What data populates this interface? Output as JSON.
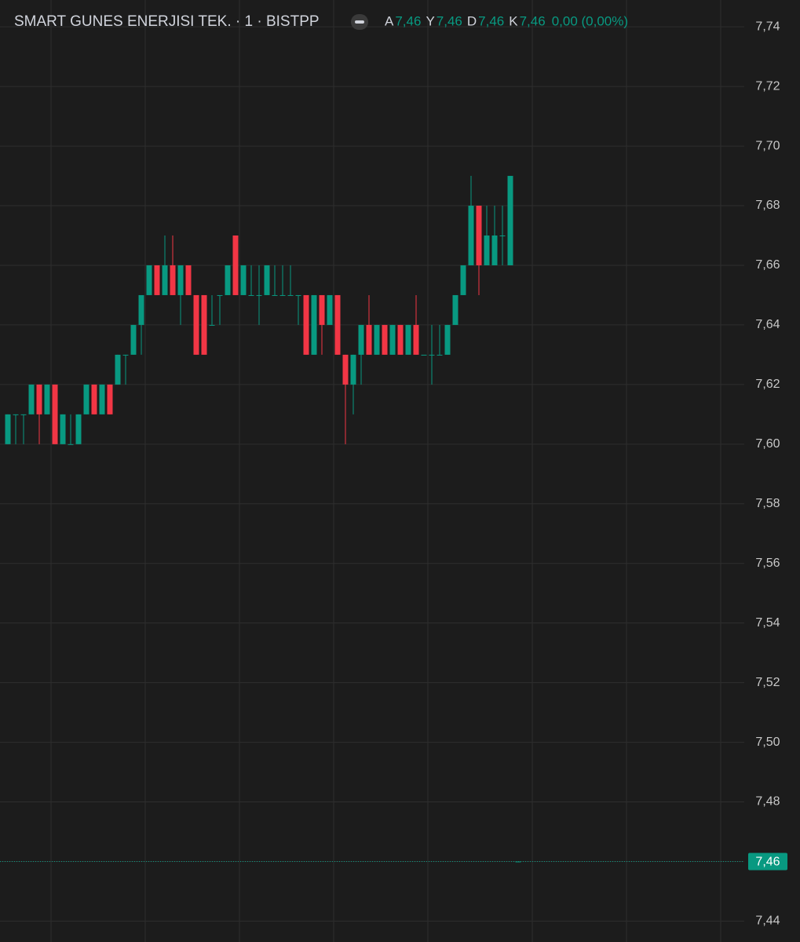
{
  "chart_data": {
    "type": "candlestick",
    "title": "SMART GUNES ENERJISI TEK. · 1 · BISTPP",
    "legend": [
      {
        "key": "A",
        "value": "7,46"
      },
      {
        "key": "Y",
        "value": "7,46"
      },
      {
        "key": "D",
        "value": "7,46"
      },
      {
        "key": "K",
        "value": "7,46"
      }
    ],
    "change": "0,00 (0,00%)",
    "up_color": "#089981",
    "down_color": "#f23645",
    "open": [
      7.6,
      7.61,
      7.61,
      7.61,
      7.62,
      7.61,
      7.62,
      7.6,
      7.6,
      7.6,
      7.61,
      7.62,
      7.61,
      7.62,
      7.62,
      7.63,
      7.63,
      7.64,
      7.65,
      7.66,
      7.65,
      7.66,
      7.65,
      7.66,
      7.65,
      7.65,
      7.64,
      7.65,
      7.65,
      7.67,
      7.65,
      7.65,
      7.65,
      7.65,
      7.65,
      7.65,
      7.65,
      7.65,
      7.65,
      7.63,
      7.65,
      7.64,
      7.65,
      7.63,
      7.62,
      7.63,
      7.64,
      7.63,
      7.64,
      7.63,
      7.64,
      7.63,
      7.64,
      7.63,
      7.63,
      7.63,
      7.63,
      7.64,
      7.65,
      7.66,
      7.68,
      7.66,
      7.66,
      7.67,
      7.66,
      7.46
    ],
    "high": [
      7.61,
      7.61,
      7.61,
      7.62,
      7.62,
      7.62,
      7.62,
      7.61,
      7.61,
      7.61,
      7.62,
      7.62,
      7.62,
      7.62,
      7.63,
      7.63,
      7.64,
      7.65,
      7.66,
      7.66,
      7.67,
      7.67,
      7.66,
      7.66,
      7.65,
      7.65,
      7.65,
      7.65,
      7.66,
      7.67,
      7.66,
      7.66,
      7.66,
      7.66,
      7.66,
      7.66,
      7.66,
      7.65,
      7.65,
      7.65,
      7.65,
      7.65,
      7.65,
      7.63,
      7.63,
      7.64,
      7.65,
      7.64,
      7.64,
      7.64,
      7.64,
      7.64,
      7.65,
      7.63,
      7.64,
      7.64,
      7.64,
      7.65,
      7.66,
      7.69,
      7.68,
      7.68,
      7.68,
      7.68,
      7.69,
      7.46
    ],
    "low": [
      7.6,
      7.6,
      7.6,
      7.61,
      7.6,
      7.61,
      7.6,
      7.6,
      7.6,
      7.6,
      7.61,
      7.61,
      7.61,
      7.61,
      7.62,
      7.62,
      7.63,
      7.63,
      7.65,
      7.65,
      7.65,
      7.65,
      7.64,
      7.65,
      7.63,
      7.63,
      7.64,
      7.64,
      7.65,
      7.65,
      7.65,
      7.65,
      7.64,
      7.65,
      7.65,
      7.65,
      7.65,
      7.64,
      7.63,
      7.63,
      7.63,
      7.64,
      7.63,
      7.6,
      7.61,
      7.62,
      7.63,
      7.63,
      7.63,
      7.63,
      7.63,
      7.63,
      7.63,
      7.63,
      7.62,
      7.63,
      7.63,
      7.64,
      7.65,
      7.66,
      7.65,
      7.66,
      7.66,
      7.66,
      7.66,
      7.46
    ],
    "close": [
      7.61,
      7.61,
      7.61,
      7.62,
      7.61,
      7.62,
      7.6,
      7.61,
      7.6,
      7.61,
      7.62,
      7.61,
      7.62,
      7.61,
      7.63,
      7.63,
      7.64,
      7.65,
      7.66,
      7.65,
      7.66,
      7.65,
      7.66,
      7.65,
      7.63,
      7.63,
      7.64,
      7.65,
      7.66,
      7.65,
      7.66,
      7.65,
      7.65,
      7.66,
      7.65,
      7.65,
      7.65,
      7.65,
      7.63,
      7.65,
      7.64,
      7.65,
      7.63,
      7.62,
      7.63,
      7.64,
      7.63,
      7.64,
      7.63,
      7.64,
      7.63,
      7.64,
      7.63,
      7.63,
      7.63,
      7.63,
      7.64,
      7.65,
      7.66,
      7.68,
      7.66,
      7.67,
      7.67,
      7.67,
      7.69,
      7.46
    ],
    "ylim": [
      7.433,
      7.749
    ],
    "yticks": [
      {
        "value": 7.44,
        "label": "7,44"
      },
      {
        "value": 7.46,
        "label": "7,46"
      },
      {
        "value": 7.48,
        "label": "7,48"
      },
      {
        "value": 7.5,
        "label": "7,50"
      },
      {
        "value": 7.52,
        "label": "7,52"
      },
      {
        "value": 7.54,
        "label": "7,54"
      },
      {
        "value": 7.56,
        "label": "7,56"
      },
      {
        "value": 7.58,
        "label": "7,58"
      },
      {
        "value": 7.6,
        "label": "7,60"
      },
      {
        "value": 7.62,
        "label": "7,62"
      },
      {
        "value": 7.64,
        "label": "7,64"
      },
      {
        "value": 7.66,
        "label": "7,66"
      },
      {
        "value": 7.68,
        "label": "7,68"
      },
      {
        "value": 7.7,
        "label": "7,70"
      },
      {
        "value": 7.72,
        "label": "7,72"
      },
      {
        "value": 7.74,
        "label": "7,74"
      }
    ],
    "last_price": {
      "value": 7.46,
      "label": "7,46"
    },
    "grid": true
  }
}
